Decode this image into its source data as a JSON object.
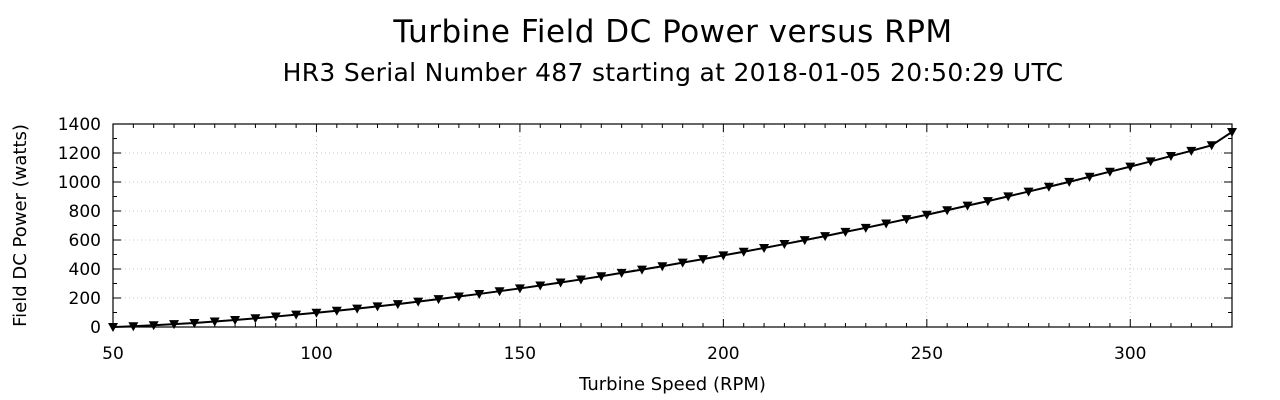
{
  "chart_data": {
    "type": "line",
    "title": "Turbine Field DC Power versus RPM",
    "subtitle": "HR3 Serial Number 487 starting at 2018-01-05 20:50:29 UTC",
    "xlabel": "Turbine Speed (RPM)",
    "ylabel": "Field DC Power (watts)",
    "xlim": [
      50,
      325
    ],
    "ylim": [
      0,
      1400
    ],
    "x_ticks": [
      50,
      100,
      150,
      200,
      250,
      300
    ],
    "y_ticks": [
      0,
      200,
      400,
      600,
      800,
      1000,
      1200,
      1400
    ],
    "grid": true,
    "marker": "inverted-triangle",
    "line_color": "#000000",
    "series": [
      {
        "x": [
          50,
          55,
          60,
          65,
          70,
          75,
          80,
          85,
          90,
          95,
          100,
          105,
          110,
          115,
          120,
          125,
          130,
          135,
          140,
          145,
          150,
          155,
          160,
          165,
          170,
          175,
          180,
          185,
          190,
          195,
          200,
          205,
          210,
          215,
          220,
          225,
          230,
          235,
          240,
          245,
          250,
          255,
          260,
          265,
          270,
          275,
          280,
          285,
          290,
          295,
          300,
          305,
          310,
          315,
          320,
          325
        ],
        "values": [
          0,
          5,
          12,
          20,
          28,
          38,
          48,
          60,
          72,
          85,
          98,
          112,
          127,
          142,
          158,
          175,
          192,
          210,
          228,
          247,
          266,
          286,
          307,
          328,
          350,
          373,
          396,
          419,
          444,
          468,
          494,
          519,
          545,
          572,
          599,
          627,
          656,
          684,
          714,
          744,
          774,
          805,
          837,
          868,
          901,
          934,
          967,
          1001,
          1036,
          1071,
          1106,
          1142,
          1179,
          1215,
          1253,
          1345
        ]
      }
    ]
  }
}
